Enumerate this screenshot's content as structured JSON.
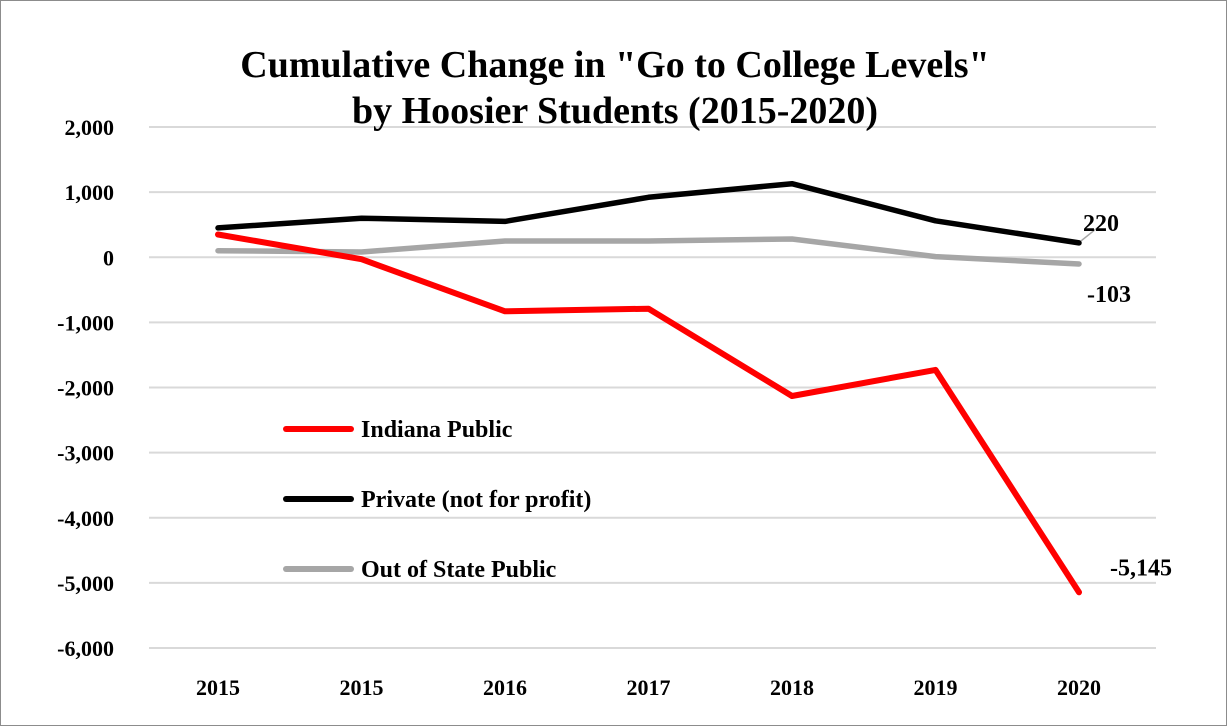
{
  "chart_data": {
    "type": "line",
    "title_lines": [
      "Cumulative Change in \"Go to College Levels\"",
      "by Hoosier Students (2015-2020)"
    ],
    "categories": [
      "2015",
      "2015",
      "2016",
      "2017",
      "2018",
      "2019",
      "2020"
    ],
    "ylim": [
      -6000,
      2000
    ],
    "yticks": [
      2000,
      1000,
      0,
      -1000,
      -2000,
      -3000,
      -4000,
      -5000,
      -6000
    ],
    "ytick_labels": [
      "2,000",
      "1,000",
      "0",
      "-1,000",
      "-2,000",
      "-3,000",
      "-4,000",
      "-5,000",
      "-6,000"
    ],
    "grid": true,
    "legend_position": "center-left",
    "series": [
      {
        "name": "Indiana Public",
        "color": "#ff0000",
        "values": [
          350,
          -30,
          -830,
          -790,
          -2130,
          -1730,
          -5145
        ]
      },
      {
        "name": "Private (not for profit)",
        "color": "#000000",
        "values": [
          450,
          600,
          550,
          920,
          1130,
          560,
          220
        ]
      },
      {
        "name": "Out of State Public",
        "color": "#a6a6a6",
        "values": [
          100,
          80,
          250,
          250,
          280,
          10,
          -103
        ]
      }
    ],
    "data_labels": [
      {
        "series": 1,
        "index": 6,
        "text": "220"
      },
      {
        "series": 2,
        "index": 6,
        "text": "-103"
      },
      {
        "series": 0,
        "index": 6,
        "text": "-5,145"
      }
    ]
  }
}
